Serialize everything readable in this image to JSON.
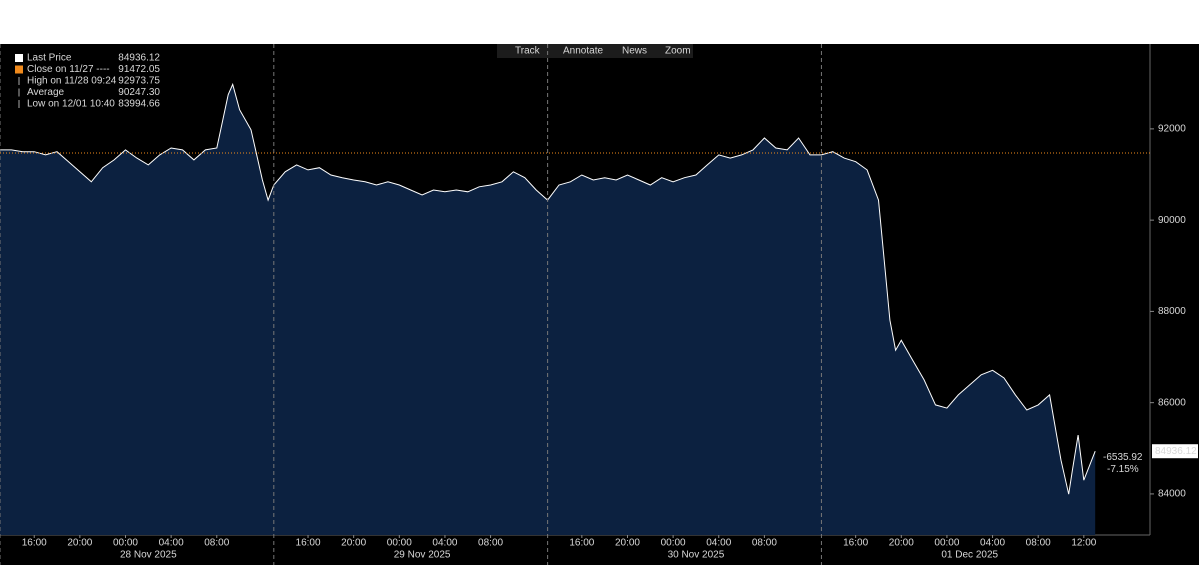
{
  "chart_data": {
    "type": "area",
    "toolbar": [
      "Track",
      "Annotate",
      "News",
      "Zoom"
    ],
    "x": [
      13,
      14,
      15,
      16,
      17,
      18,
      19,
      20,
      21,
      22,
      23,
      24,
      25,
      26,
      27,
      28,
      29,
      30,
      31,
      32,
      33,
      33.4,
      34,
      35,
      36,
      36.5,
      37,
      38,
      39,
      40,
      41,
      42,
      43,
      44,
      45,
      46,
      47,
      48,
      49,
      50,
      51,
      52,
      53,
      54,
      55,
      56,
      57,
      58,
      59,
      60,
      61,
      62,
      63,
      64,
      65,
      66,
      67,
      68,
      69,
      70,
      71,
      72,
      73,
      74,
      75,
      76,
      77,
      78,
      79,
      80,
      81,
      82,
      83,
      84,
      85,
      86,
      87,
      88,
      89,
      90,
      91,
      91.5,
      92,
      93,
      94,
      95,
      96,
      97,
      98,
      99,
      100,
      101,
      102,
      103,
      104,
      105,
      106,
      106.67,
      107,
      107.5,
      108,
      109
    ],
    "series": [
      {
        "name": "Last Price",
        "color": "#ffffff",
        "fill": "#0c2140",
        "values": [
          91540,
          91540,
          91500,
          91500,
          91430,
          91500,
          91280,
          91060,
          90840,
          91150,
          91320,
          91540,
          91360,
          91210,
          91430,
          91580,
          91540,
          91320,
          91540,
          91580,
          92750,
          92973.75,
          92420,
          91980,
          90880,
          90440,
          90770,
          91060,
          91210,
          91100,
          91150,
          90990,
          90930,
          90880,
          90840,
          90770,
          90840,
          90770,
          90660,
          90550,
          90660,
          90620,
          90660,
          90620,
          90730,
          90770,
          90840,
          91060,
          90930,
          90660,
          90440,
          90770,
          90840,
          90990,
          90880,
          90930,
          90880,
          90990,
          90880,
          90770,
          90930,
          90840,
          90930,
          90990,
          91210,
          91430,
          91360,
          91430,
          91540,
          91800,
          91580,
          91540,
          91800,
          91430,
          91430,
          91500,
          91360,
          91280,
          91100,
          90440,
          87810,
          87150,
          87370,
          86930,
          86500,
          85950,
          85880,
          86170,
          86390,
          86610,
          86710,
          86540,
          86170,
          85840,
          85950,
          86170,
          84740,
          83994.66,
          84520,
          85290,
          84300,
          84936.12
        ]
      }
    ],
    "xlim": [
      13,
      113.8
    ],
    "ylim": [
      83100,
      93860
    ],
    "yticks": [
      84000,
      86000,
      88000,
      90000,
      92000
    ],
    "xticks": [
      {
        "value": 16,
        "label": "16:00"
      },
      {
        "value": 20,
        "label": "20:00"
      },
      {
        "value": 24,
        "label": "00:00"
      },
      {
        "value": 28,
        "label": "04:00"
      },
      {
        "value": 32,
        "label": "08:00"
      },
      {
        "value": 40,
        "label": "16:00"
      },
      {
        "value": 44,
        "label": "20:00"
      },
      {
        "value": 48,
        "label": "00:00"
      },
      {
        "value": 52,
        "label": "04:00"
      },
      {
        "value": 56,
        "label": "08:00"
      },
      {
        "value": 64,
        "label": "16:00"
      },
      {
        "value": 68,
        "label": "20:00"
      },
      {
        "value": 72,
        "label": "00:00"
      },
      {
        "value": 76,
        "label": "04:00"
      },
      {
        "value": 80,
        "label": "08:00"
      },
      {
        "value": 88,
        "label": "16:00"
      },
      {
        "value": 92,
        "label": "20:00"
      },
      {
        "value": 96,
        "label": "00:00"
      },
      {
        "value": 100,
        "label": "04:00"
      },
      {
        "value": 104,
        "label": "08:00"
      },
      {
        "value": 108,
        "label": "12:00"
      }
    ],
    "date_labels": [
      {
        "value": 26,
        "label": "28 Nov 2025"
      },
      {
        "value": 50,
        "label": "29 Nov 2025"
      },
      {
        "value": 74,
        "label": "30 Nov 2025"
      },
      {
        "value": 98,
        "label": "01 Dec 2025"
      }
    ],
    "xdividers": [
      13,
      37,
      61,
      85
    ],
    "last_price": 84936.12,
    "stats": [
      {
        "name": "Close on 11/27 ----",
        "value": 91472.05,
        "color": "#f08a1c"
      },
      {
        "name": "High on 11/28 09:24",
        "value": 92973.75
      },
      {
        "name": "Average",
        "value": 90247.3,
        "value_label": "90247.30"
      },
      {
        "name": "Low on 12/01 10:40",
        "value": 83994.66
      }
    ],
    "change": -6535.92,
    "change_pct": {
      "value": -7.15,
      "label": "-7.15%"
    }
  }
}
